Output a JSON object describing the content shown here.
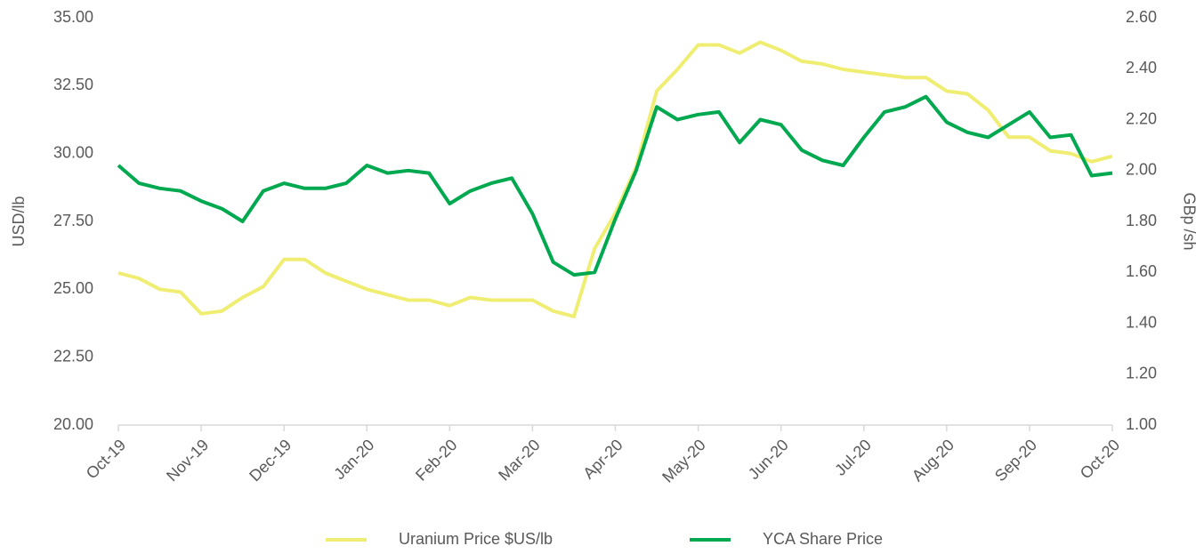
{
  "chart_data": {
    "type": "line",
    "y_label": "USD/lb",
    "y2_label": "GBp /sh",
    "xlim": [
      0,
      12
    ],
    "xticks": [
      {
        "value": 0,
        "label": "Oct-19"
      },
      {
        "value": 1,
        "label": "Nov-19"
      },
      {
        "value": 2,
        "label": "Dec-19"
      },
      {
        "value": 3,
        "label": "Jan-20"
      },
      {
        "value": 4,
        "label": "Feb-20"
      },
      {
        "value": 5,
        "label": "Mar-20"
      },
      {
        "value": 6,
        "label": "Apr-20"
      },
      {
        "value": 7,
        "label": "May-20"
      },
      {
        "value": 8,
        "label": "Jun-20"
      },
      {
        "value": 9,
        "label": "Jul-20"
      },
      {
        "value": 10,
        "label": "Aug-20"
      },
      {
        "value": 11,
        "label": "Sep-20"
      },
      {
        "value": 12,
        "label": "Oct-20"
      }
    ],
    "ylim": [
      20,
      35
    ],
    "yticks": [
      {
        "value": 20,
        "label": "20.00"
      },
      {
        "value": 22.5,
        "label": "22.50"
      },
      {
        "value": 25,
        "label": "25.00"
      },
      {
        "value": 27.5,
        "label": "27.50"
      },
      {
        "value": 30,
        "label": "30.00"
      },
      {
        "value": 32.5,
        "label": "32.50"
      },
      {
        "value": 35,
        "label": "35.00"
      }
    ],
    "y2lim": [
      1.0,
      2.6
    ],
    "y2ticks": [
      {
        "value": 1.0,
        "label": "1.00"
      },
      {
        "value": 1.2,
        "label": "1.20"
      },
      {
        "value": 1.4,
        "label": "1.40"
      },
      {
        "value": 1.6,
        "label": "1.60"
      },
      {
        "value": 1.8,
        "label": "1.80"
      },
      {
        "value": 2.0,
        "label": "2.00"
      },
      {
        "value": 2.2,
        "label": "2.20"
      },
      {
        "value": 2.4,
        "label": "2.40"
      },
      {
        "value": 2.6,
        "label": "2.60"
      }
    ],
    "x": [
      0,
      0.25,
      0.5,
      0.75,
      1,
      1.25,
      1.5,
      1.75,
      2,
      2.25,
      2.5,
      2.75,
      3,
      3.25,
      3.5,
      3.75,
      4,
      4.25,
      4.5,
      4.75,
      5,
      5.25,
      5.5,
      5.75,
      6,
      6.25,
      6.5,
      6.75,
      7,
      7.25,
      7.5,
      7.75,
      8,
      8.25,
      8.5,
      8.75,
      9,
      9.25,
      9.5,
      9.75,
      10,
      10.25,
      10.5,
      10.75,
      11,
      11.25,
      11.5,
      11.75,
      12
    ],
    "series": [
      {
        "name": "Uranium Price $US/lb",
        "color": "#f0ee72",
        "values": [
          25.6,
          25.4,
          25.0,
          24.9,
          24.1,
          24.2,
          24.7,
          25.1,
          26.1,
          26.1,
          25.6,
          25.3,
          25.0,
          24.8,
          24.6,
          24.6,
          24.4,
          24.7,
          24.6,
          24.6,
          24.6,
          24.2,
          24.0,
          26.5,
          27.8,
          29.5,
          32.3,
          33.1,
          34.0,
          34.0,
          33.7,
          34.1,
          33.8,
          33.4,
          33.3,
          33.1,
          33.0,
          32.9,
          32.8,
          32.8,
          32.3,
          32.2,
          31.6,
          30.6,
          30.6,
          30.1,
          30.0,
          29.7,
          29.9
        ]
      },
      {
        "name": "YCA Share Price",
        "color": "#00a84f",
        "axis": "y2",
        "values": [
          2.02,
          1.95,
          1.93,
          1.92,
          1.88,
          1.85,
          1.8,
          1.92,
          1.95,
          1.93,
          1.93,
          1.95,
          2.02,
          1.99,
          2.0,
          1.99,
          1.87,
          1.92,
          1.95,
          1.97,
          1.83,
          1.64,
          1.59,
          1.6,
          1.81,
          2.0,
          2.25,
          2.2,
          2.22,
          2.23,
          2.11,
          2.2,
          2.18,
          2.08,
          2.04,
          2.02,
          2.13,
          2.23,
          2.25,
          2.29,
          2.19,
          2.15,
          2.13,
          2.18,
          2.23,
          2.13,
          2.14,
          1.98,
          1.99
        ]
      }
    ]
  }
}
